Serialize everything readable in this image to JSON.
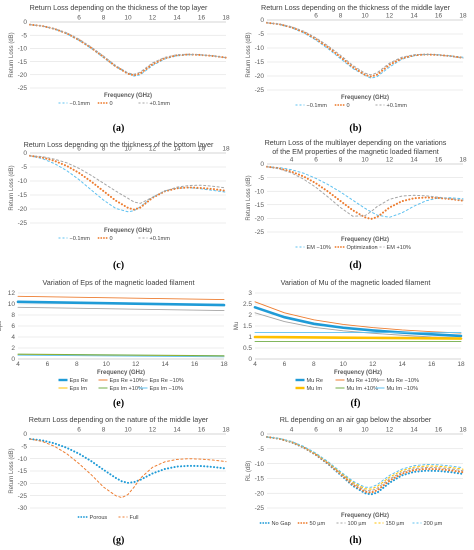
{
  "colors": {
    "blue": "#1f9bd7",
    "orange": "#ed7d31",
    "gray": "#a5a5a5",
    "yellow": "#ffc000",
    "green": "#70ad47",
    "lightblue": "#5ec1f0"
  },
  "chart_data": [
    {
      "id": "a",
      "type": "line",
      "panel_label": "(a)",
      "title": [
        "Return Loss depending on the thickness of the top layer"
      ],
      "xlabel": "Frequency (GHz)",
      "ylabel": "Return Loss (dB)",
      "xlim": [
        2,
        18
      ],
      "ylim": [
        -25,
        0
      ],
      "xticks": [
        6,
        8,
        10,
        12,
        14,
        16,
        18
      ],
      "yticks": [
        0,
        -5,
        -10,
        -15,
        -20,
        -25
      ],
      "xaxis_at": "top",
      "grid": "horizontal",
      "legend": "bottom",
      "x": [
        2,
        3,
        4,
        5,
        6,
        7,
        8,
        9,
        10,
        10.5,
        11,
        12,
        13,
        14,
        15,
        16,
        17,
        18
      ],
      "series": [
        {
          "name": "−0.1mm",
          "color": "lightblue",
          "style": "dash",
          "values": [
            -1,
            -1.5,
            -2.7,
            -4.5,
            -7,
            -10,
            -13.5,
            -17,
            -19.5,
            -20.5,
            -20,
            -16.5,
            -14,
            -12.8,
            -12.4,
            -12.5,
            -12.8,
            -13.5
          ]
        },
        {
          "name": "0",
          "color": "orange",
          "style": "dot",
          "values": [
            -1,
            -1.5,
            -2.6,
            -4.3,
            -6.8,
            -9.8,
            -13.2,
            -16.8,
            -19.6,
            -20.2,
            -19.5,
            -16,
            -13.7,
            -12.6,
            -12.3,
            -12.5,
            -12.9,
            -13.5
          ]
        },
        {
          "name": "+0.1mm",
          "color": "gray",
          "style": "dash",
          "values": [
            -1,
            -1.5,
            -2.5,
            -4.1,
            -6.5,
            -9.5,
            -12.9,
            -16.5,
            -19.3,
            -19.8,
            -19,
            -15.5,
            -13.4,
            -12.4,
            -12.2,
            -12.4,
            -12.9,
            -13.5
          ]
        }
      ]
    },
    {
      "id": "b",
      "type": "line",
      "panel_label": "(b)",
      "title": [
        "Return Loss depending on the thickness of the middle layer"
      ],
      "xlabel": "Frequency (GHz)",
      "ylabel": "Return Loss (dB)",
      "xlim": [
        2,
        18
      ],
      "ylim": [
        -25,
        0
      ],
      "xticks": [
        6,
        8,
        10,
        12,
        14,
        16,
        18
      ],
      "yticks": [
        0,
        -5,
        -10,
        -15,
        -20,
        -25
      ],
      "xaxis_at": "top",
      "grid": "horizontal",
      "legend": "bottom",
      "x": [
        2,
        3,
        4,
        5,
        6,
        7,
        8,
        9,
        10,
        10.5,
        11,
        12,
        13,
        14,
        15,
        16,
        17,
        18
      ],
      "series": [
        {
          "name": "−0.1mm",
          "color": "lightblue",
          "style": "dash",
          "values": [
            -1,
            -1.6,
            -2.8,
            -4.6,
            -7.2,
            -10.3,
            -13.8,
            -17.3,
            -19.8,
            -20.8,
            -20.2,
            -16.8,
            -14,
            -12.8,
            -12.3,
            -12.4,
            -12.8,
            -13.3
          ]
        },
        {
          "name": "0",
          "color": "orange",
          "style": "dot",
          "values": [
            -1,
            -1.5,
            -2.6,
            -4.3,
            -6.8,
            -9.8,
            -13.2,
            -16.8,
            -19.6,
            -20.2,
            -19.5,
            -16,
            -13.7,
            -12.6,
            -12.3,
            -12.5,
            -12.9,
            -13.5
          ]
        },
        {
          "name": "+0.1mm",
          "color": "gray",
          "style": "dash",
          "values": [
            -1,
            -1.4,
            -2.4,
            -4,
            -6.4,
            -9.3,
            -12.6,
            -16.2,
            -19,
            -19.6,
            -18.8,
            -15.4,
            -13.3,
            -12.4,
            -12.2,
            -12.5,
            -13,
            -13.6
          ]
        }
      ]
    },
    {
      "id": "c",
      "type": "line",
      "panel_label": "(c)",
      "title": [
        "Return Loss depending on the thickness of the bottom layer"
      ],
      "xlabel": "Frequency (GHz)",
      "ylabel": "Return Loss (dB)",
      "xlim": [
        2,
        18
      ],
      "ylim": [
        -25,
        0
      ],
      "xticks": [
        6,
        8,
        10,
        12,
        14,
        16,
        18
      ],
      "yticks": [
        0,
        -5,
        -10,
        -15,
        -20,
        -25
      ],
      "xaxis_at": "top",
      "grid": "horizontal",
      "legend": "bottom",
      "x": [
        2,
        3,
        4,
        5,
        6,
        7,
        8,
        9,
        10,
        10.5,
        11,
        12,
        13,
        14,
        15,
        16,
        17,
        18
      ],
      "series": [
        {
          "name": "−0.1mm",
          "color": "lightblue",
          "style": "dash",
          "values": [
            -1,
            -2,
            -3.8,
            -6.3,
            -9.5,
            -13.2,
            -16.8,
            -19.8,
            -21,
            -20.6,
            -19.2,
            -15.8,
            -13.5,
            -12.6,
            -12.4,
            -12.8,
            -13.4,
            -14
          ]
        },
        {
          "name": "0",
          "color": "orange",
          "style": "dot",
          "values": [
            -1,
            -1.6,
            -2.8,
            -4.6,
            -7.1,
            -10.2,
            -13.6,
            -17,
            -19.6,
            -20.2,
            -19.5,
            -16,
            -13.7,
            -12.6,
            -12.3,
            -12.5,
            -12.9,
            -13.5
          ]
        },
        {
          "name": "+0.1mm",
          "color": "gray",
          "style": "dash",
          "values": [
            -1,
            -1.3,
            -2.2,
            -3.5,
            -5.5,
            -8,
            -10.8,
            -13.6,
            -16.2,
            -17.5,
            -18,
            -15.8,
            -13.6,
            -12.2,
            -11.6,
            -11.5,
            -11.9,
            -12.5
          ]
        }
      ]
    },
    {
      "id": "d",
      "type": "line",
      "panel_label": "(d)",
      "title": [
        "Return Loss of the multilayer depending on the variations",
        "of the EM properties of the magnetic loaded filament"
      ],
      "xlabel": "Frequency (GHz)",
      "ylabel": "Return Loss (dB)",
      "xlim": [
        2,
        18
      ],
      "ylim": [
        -25,
        0
      ],
      "xticks": [
        4,
        6,
        8,
        10,
        12,
        14,
        16,
        18
      ],
      "yticks": [
        0,
        -5,
        -10,
        -15,
        -20,
        -25
      ],
      "xaxis_at": "top",
      "grid": "horizontal",
      "legend": "bottom",
      "x": [
        2,
        3,
        4,
        5,
        6,
        7,
        8,
        9,
        10,
        10.5,
        11,
        12,
        13,
        14,
        15,
        16,
        17,
        18
      ],
      "series": [
        {
          "name": "EM −10%",
          "color": "lightblue",
          "style": "dash",
          "values": [
            -1,
            -1.3,
            -2.1,
            -3.4,
            -5.3,
            -7.6,
            -10.3,
            -13.3,
            -16.3,
            -17.6,
            -18.8,
            -19.6,
            -18,
            -15.5,
            -13.5,
            -12.5,
            -12.4,
            -12.8
          ]
        },
        {
          "name": "Optimization",
          "color": "orange",
          "style": "dot",
          "values": [
            -1,
            -1.6,
            -2.8,
            -4.6,
            -7.1,
            -10.2,
            -13.6,
            -17,
            -19.6,
            -20.2,
            -19.5,
            -16,
            -13.7,
            -12.6,
            -12.3,
            -12.5,
            -12.9,
            -13.5
          ]
        },
        {
          "name": "EM +10%",
          "color": "gray",
          "style": "dash",
          "values": [
            -1,
            -1.8,
            -3.3,
            -5.6,
            -8.6,
            -12.2,
            -16,
            -19.2,
            -19,
            -17.5,
            -15.6,
            -13,
            -11.8,
            -11.5,
            -11.7,
            -12.2,
            -12.8,
            -13.3
          ]
        }
      ]
    },
    {
      "id": "e",
      "type": "line",
      "panel_label": "(e)",
      "title": [
        "Variation of Eps of the magnetic loaded filament"
      ],
      "xlabel": "Frequency (GHz)",
      "ylabel": "Eps",
      "xlim": [
        4,
        18
      ],
      "ylim": [
        0,
        12
      ],
      "xticks": [
        4,
        6,
        8,
        10,
        12,
        14,
        16,
        18
      ],
      "yticks": [
        0,
        2,
        4,
        6,
        8,
        10,
        12
      ],
      "xaxis_at": "bottom",
      "grid": "horizontal",
      "legend": "bottom",
      "x": [
        4,
        18
      ],
      "series": [
        {
          "name": "Eps Re",
          "color": "blue",
          "style": "thick",
          "values": [
            10.4,
            9.8
          ]
        },
        {
          "name": "Eps Re +10%",
          "color": "orange",
          "style": "solid",
          "values": [
            11.4,
            10.8
          ]
        },
        {
          "name": "Eps Re −10%",
          "color": "gray",
          "style": "solid",
          "values": [
            9.4,
            8.8
          ]
        },
        {
          "name": "Eps Im",
          "color": "yellow",
          "style": "solid",
          "values": [
            0.8,
            0.5
          ]
        },
        {
          "name": "Eps Im +10%",
          "color": "green",
          "style": "solid",
          "values": [
            0.9,
            0.6
          ]
        },
        {
          "name": "Eps Im −10%",
          "color": "lightblue",
          "style": "solid",
          "values": [
            0.7,
            0.4
          ]
        }
      ]
    },
    {
      "id": "f",
      "type": "line",
      "panel_label": "(f)",
      "title": [
        "Variation of Mu of the magnetic loaded filament"
      ],
      "xlabel": "Frequency (GHz)",
      "ylabel": "Mu",
      "xlim": [
        4,
        18
      ],
      "ylim": [
        0,
        3
      ],
      "xticks": [
        4,
        6,
        8,
        10,
        12,
        14,
        16,
        18
      ],
      "yticks": [
        0,
        0.5,
        1,
        1.5,
        2,
        2.5,
        3
      ],
      "xaxis_at": "bottom",
      "grid": "horizontal",
      "legend": "bottom",
      "x": [
        4,
        6,
        8,
        10,
        12,
        14,
        16,
        18
      ],
      "series": [
        {
          "name": "Mu Re",
          "color": "blue",
          "style": "thick",
          "values": [
            2.35,
            1.9,
            1.6,
            1.42,
            1.3,
            1.2,
            1.12,
            1.05
          ]
        },
        {
          "name": "Mu Re +10%",
          "color": "orange",
          "style": "solid",
          "values": [
            2.6,
            2.1,
            1.78,
            1.57,
            1.43,
            1.32,
            1.24,
            1.18
          ]
        },
        {
          "name": "Mu Re −10%",
          "color": "gray",
          "style": "solid",
          "values": [
            2.1,
            1.7,
            1.44,
            1.28,
            1.17,
            1.08,
            1.0,
            0.95
          ]
        },
        {
          "name": "Mu Im",
          "color": "yellow",
          "style": "thick",
          "values": [
            1.0,
            0.99,
            0.98,
            0.97,
            0.96,
            0.95,
            0.94,
            0.93
          ]
        },
        {
          "name": "Mu Im +10%",
          "color": "green",
          "style": "solid",
          "values": [
            0.8,
            0.8,
            0.8,
            0.8,
            0.8,
            0.8,
            0.8,
            0.8
          ]
        },
        {
          "name": "Mu Im −10%",
          "color": "lightblue",
          "style": "solid",
          "values": [
            1.2,
            1.2,
            1.2,
            1.2,
            1.2,
            1.2,
            1.2,
            1.2
          ]
        }
      ]
    },
    {
      "id": "g",
      "type": "line",
      "panel_label": "(g)",
      "title": [
        "Return Loss depending on the nature of the middle layer"
      ],
      "xlabel": "",
      "ylabel": "Return Loss (dB)",
      "xlim": [
        2,
        18
      ],
      "ylim": [
        -30,
        0
      ],
      "xticks": [
        6,
        8,
        10,
        12,
        14,
        16,
        18
      ],
      "yticks": [
        0,
        -5,
        -10,
        -15,
        -20,
        -25,
        -30
      ],
      "xaxis_at": "top",
      "grid": "horizontal",
      "legend": "bottom",
      "x": [
        2,
        3,
        4,
        5,
        6,
        7,
        8,
        9,
        9.5,
        10,
        10.5,
        11,
        12,
        13,
        14,
        15,
        16,
        17,
        18
      ],
      "series": [
        {
          "name": "Porous",
          "color": "blue",
          "style": "dot",
          "values": [
            -2,
            -2.6,
            -3.8,
            -5.6,
            -8,
            -11,
            -14.5,
            -17.8,
            -19.2,
            -19.8,
            -19.5,
            -18.6,
            -16,
            -14.2,
            -13.2,
            -12.9,
            -13,
            -13.4,
            -14
          ]
        },
        {
          "name": "Full",
          "color": "orange",
          "style": "dash",
          "values": [
            -2,
            -3,
            -5,
            -8,
            -12,
            -16.5,
            -21.5,
            -25,
            -25.8,
            -24.5,
            -21.5,
            -18,
            -13.5,
            -11.3,
            -10.3,
            -10,
            -10.2,
            -10.6,
            -11.2
          ]
        }
      ]
    },
    {
      "id": "h",
      "type": "line",
      "panel_label": "(h)",
      "title": [
        "RL depending on an air gap below the absorber"
      ],
      "xlabel": "Frequency (GHz)",
      "ylabel": "RL (dB)",
      "xlim": [
        2,
        18
      ],
      "ylim": [
        -25,
        0
      ],
      "xticks": [
        4,
        6,
        8,
        10,
        12,
        14,
        16,
        18
      ],
      "yticks": [
        0,
        -5,
        -10,
        -15,
        -20,
        -25
      ],
      "xaxis_at": "top",
      "grid": "horizontal",
      "legend": "bottom",
      "x": [
        2,
        3,
        4,
        5,
        6,
        7,
        8,
        9,
        10,
        10.5,
        11,
        12,
        13,
        14,
        15,
        16,
        17,
        18
      ],
      "series": [
        {
          "name": "No Gap",
          "color": "blue",
          "style": "dot",
          "values": [
            -1,
            -1.6,
            -2.8,
            -4.6,
            -7.1,
            -10.2,
            -13.8,
            -17.5,
            -20,
            -20.4,
            -19.8,
            -16.5,
            -14,
            -12.8,
            -12.4,
            -12.5,
            -12.9,
            -13.5
          ]
        },
        {
          "name": "50 µm",
          "color": "orange",
          "style": "dot",
          "values": [
            -1,
            -1.6,
            -2.7,
            -4.5,
            -7,
            -10,
            -13.5,
            -17.1,
            -19.5,
            -19.8,
            -19,
            -15.8,
            -13.4,
            -12.2,
            -11.8,
            -11.9,
            -12.3,
            -12.9
          ]
        },
        {
          "name": "100 µm",
          "color": "gray",
          "style": "dash",
          "values": [
            -1,
            -1.5,
            -2.6,
            -4.4,
            -6.8,
            -9.8,
            -13.2,
            -16.7,
            -19,
            -19.2,
            -18.3,
            -15.2,
            -12.9,
            -11.7,
            -11.3,
            -11.4,
            -11.8,
            -12.4
          ]
        },
        {
          "name": "150 µm",
          "color": "yellow",
          "style": "dash",
          "values": [
            -1,
            -1.5,
            -2.6,
            -4.3,
            -6.7,
            -9.6,
            -13,
            -16.3,
            -18.5,
            -18.6,
            -17.7,
            -14.6,
            -12.4,
            -11.2,
            -10.8,
            -10.9,
            -11.3,
            -11.9
          ]
        },
        {
          "name": "200 µm",
          "color": "lightblue",
          "style": "dash",
          "values": [
            -1,
            -1.5,
            -2.5,
            -4.2,
            -6.5,
            -9.4,
            -12.7,
            -15.9,
            -18,
            -18,
            -17.1,
            -14,
            -11.9,
            -10.7,
            -10.3,
            -10.4,
            -10.8,
            -11.4
          ]
        }
      ]
    }
  ]
}
